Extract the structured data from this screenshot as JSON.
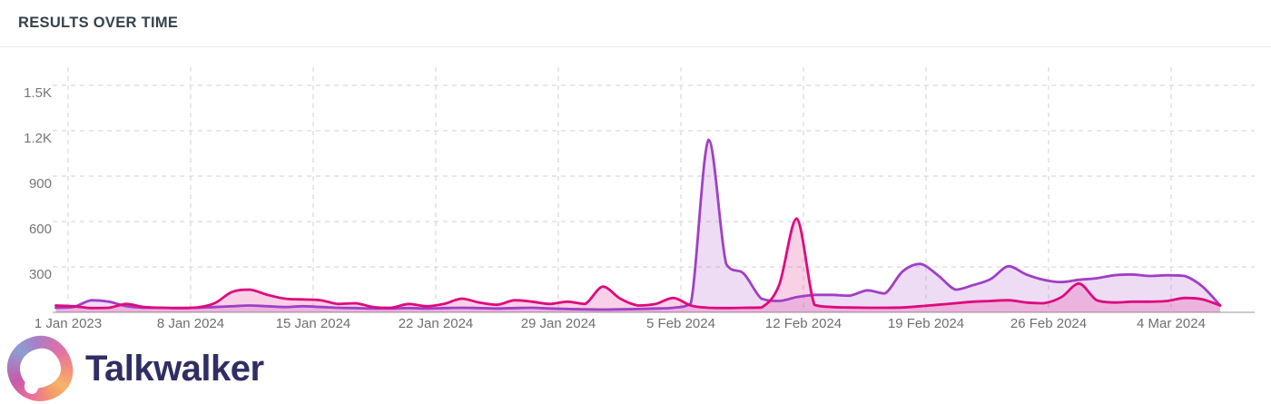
{
  "header": {
    "title": "RESULTS OVER TIME"
  },
  "footer": {
    "brand": "Talkwalker",
    "logo_icon": "talkwalker-swirl-logo"
  },
  "colors": {
    "title_text": "#36424b",
    "axis_text": "#6e6e6e",
    "gridline": "#d2d2d2",
    "axis_line": "#b9b9b9",
    "brand_text": "#302e63"
  },
  "chart_data": {
    "type": "area",
    "title": "RESULTS OVER TIME",
    "xlabel": "",
    "ylabel": "",
    "x_resolution": "daily",
    "x_tick_labels": [
      "1 Jan 2023",
      "8 Jan 2024",
      "15 Jan 2024",
      "22 Jan 2024",
      "29 Jan 2024",
      "5 Feb 2024",
      "12 Feb 2024",
      "19 Feb 2024",
      "26 Feb 2024",
      "4 Mar 2024"
    ],
    "y_tick_labels": [
      "300",
      "600",
      "900",
      "1.2K",
      "1.5K"
    ],
    "y_tick_values": [
      300,
      600,
      900,
      1200,
      1500
    ],
    "ylim": [
      0,
      1620
    ],
    "grid": "dashed-both-axes",
    "legend_position": "none",
    "series": [
      {
        "name": "purple-series",
        "color": "#a03fc6",
        "fill": "rgba(160,63,198,0.18)",
        "values": [
          30,
          35,
          80,
          70,
          40,
          30,
          30,
          28,
          30,
          35,
          40,
          45,
          40,
          35,
          40,
          35,
          30,
          28,
          25,
          25,
          28,
          25,
          28,
          30,
          28,
          25,
          28,
          30,
          25,
          22,
          20,
          18,
          20,
          22,
          25,
          30,
          60,
          1140,
          320,
          255,
          90,
          75,
          100,
          115,
          115,
          110,
          145,
          125,
          270,
          320,
          245,
          150,
          180,
          220,
          305,
          250,
          215,
          200,
          215,
          225,
          245,
          250,
          240,
          245,
          240,
          170,
          45
        ]
      },
      {
        "name": "pink-series",
        "color": "#de0a7e",
        "fill": "rgba(222,10,126,0.19)",
        "values": [
          45,
          40,
          28,
          30,
          55,
          35,
          30,
          28,
          32,
          60,
          135,
          150,
          115,
          90,
          85,
          80,
          55,
          60,
          35,
          30,
          55,
          40,
          55,
          90,
          65,
          50,
          80,
          70,
          55,
          70,
          55,
          170,
          90,
          45,
          55,
          95,
          45,
          30,
          28,
          30,
          32,
          180,
          620,
          50,
          35,
          32,
          30,
          30,
          32,
          40,
          50,
          60,
          70,
          75,
          80,
          65,
          60,
          100,
          190,
          80,
          65,
          70,
          70,
          75,
          95,
          85,
          45
        ]
      }
    ]
  }
}
